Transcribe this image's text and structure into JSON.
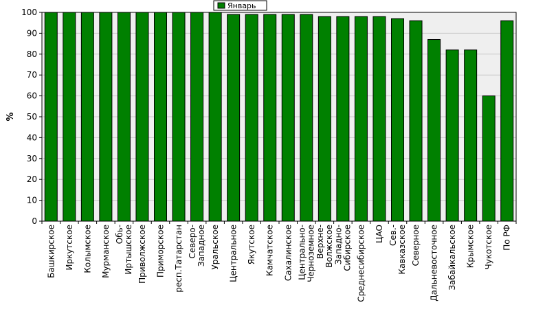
{
  "chart_data": {
    "type": "bar",
    "ylabel": "%",
    "ylim": [
      0,
      100
    ],
    "yticks": [
      0,
      10,
      20,
      30,
      40,
      50,
      60,
      70,
      80,
      90,
      100
    ],
    "grid": true,
    "legend_position": "top-center",
    "categories": [
      "Башкирское",
      "Иркутское",
      "Колымское",
      "Мурманское",
      "Обь-Иртышское",
      "Приволжское",
      "Приморское",
      "респ.Татарстан",
      "Северо-Западное",
      "Уральское",
      "Центральное",
      "Якутское",
      "Камчатское",
      "Сахалинское",
      "Центрально-Черноземное",
      "Верхне-Волжское",
      "Западно-Сибирское",
      "Среднесибирское",
      "ЦАО",
      "Сев.-Кавказское",
      "Северное",
      "Дальневосточное",
      "Забайкальское",
      "Крымское",
      "Чукотское",
      "По РФ"
    ],
    "category_lines": [
      [
        "Башкирское"
      ],
      [
        "Иркутское"
      ],
      [
        "Колымское"
      ],
      [
        "Мурманское"
      ],
      [
        "Обь-",
        "Иртышское"
      ],
      [
        "Приволжское"
      ],
      [
        "Приморское"
      ],
      [
        "респ.Татарстан"
      ],
      [
        "Северо-",
        "Западное"
      ],
      [
        "Уральское"
      ],
      [
        "Центральное"
      ],
      [
        "Якутское"
      ],
      [
        "Камчатское"
      ],
      [
        "Сахалинское"
      ],
      [
        "Центрально-",
        "Черноземное"
      ],
      [
        "Верхне-",
        "Волжское"
      ],
      [
        "Западно-",
        "Сибирское"
      ],
      [
        "Среднесибирское"
      ],
      [
        "ЦАО"
      ],
      [
        "Сев.-",
        "Кавказское"
      ],
      [
        "Северное"
      ],
      [
        "Дальневосточное"
      ],
      [
        "Забайкальское"
      ],
      [
        "Крымское"
      ],
      [
        "Чукотское"
      ],
      [
        "По РФ"
      ]
    ],
    "series": [
      {
        "name": "Январь",
        "color": "#008000",
        "values": [
          100,
          100,
          100,
          100,
          100,
          100,
          100,
          100,
          100,
          100,
          99,
          99,
          99,
          99,
          99,
          98,
          98,
          98,
          98,
          97,
          96,
          87,
          82,
          82,
          60,
          96
        ]
      }
    ]
  }
}
